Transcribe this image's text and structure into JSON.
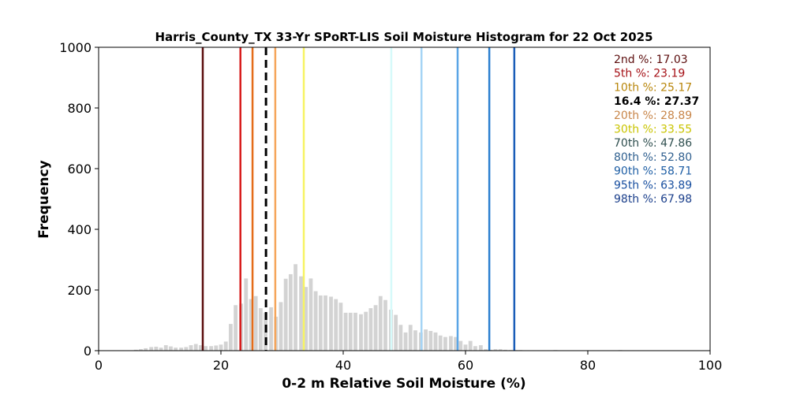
{
  "chart_data": {
    "type": "bar",
    "title": "Harris_County_TX 33-Yr SPoRT-LIS Soil Moisture Histogram for 22 Oct 2025",
    "xlabel": "0-2 m Relative Soil Moisture (%)",
    "ylabel": "Frequency",
    "xlim": [
      0,
      100
    ],
    "ylim": [
      0,
      1000
    ],
    "xticks": [
      "0",
      "20",
      "40",
      "60",
      "80",
      "100"
    ],
    "yticks": [
      "0",
      "200",
      "400",
      "600",
      "800",
      "1000"
    ],
    "bar_color": "#d3d3d3",
    "bins": {
      "x": [
        5.3,
        6.1,
        6.9,
        7.7,
        8.6,
        9.4,
        10.2,
        11.0,
        11.8,
        12.6,
        13.5,
        14.3,
        15.1,
        15.9,
        16.7,
        17.5,
        18.4,
        19.2,
        20.0,
        20.8,
        21.6,
        22.4,
        23.3,
        24.1,
        24.9,
        25.7,
        26.5,
        27.3,
        28.2,
        29.0,
        29.8,
        30.6,
        31.4,
        32.2,
        33.1,
        33.9,
        34.7,
        35.5,
        36.3,
        37.1,
        38.0,
        38.8,
        39.6,
        40.4,
        41.2,
        42.0,
        42.9,
        43.7,
        44.5,
        45.3,
        46.1,
        46.9,
        47.8,
        48.6,
        49.4,
        50.2,
        51.0,
        51.8,
        52.7,
        53.5,
        54.3,
        55.1,
        55.9,
        56.7,
        57.6,
        58.4,
        59.2,
        60.0,
        60.8,
        61.6,
        62.5,
        63.3,
        64.1,
        64.9,
        65.7,
        66.5,
        67.4,
        68.2,
        69.0,
        69.8,
        70.6,
        71.4,
        72.3,
        73.1,
        73.9,
        74.7,
        75.5,
        76.3,
        77.2,
        78.0,
        78.8,
        79.6,
        80.4,
        81.2,
        82.1,
        82.9,
        83.7,
        84.5,
        85.3
      ],
      "values": [
        1,
        3,
        5,
        8,
        12,
        13,
        10,
        18,
        14,
        10,
        10,
        12,
        18,
        22,
        18,
        15,
        15,
        17,
        20,
        30,
        88,
        150,
        155,
        238,
        170,
        180,
        140,
        125,
        143,
        112,
        160,
        237,
        252,
        285,
        245,
        210,
        238,
        196,
        182,
        182,
        178,
        170,
        158,
        125,
        125,
        125,
        120,
        128,
        140,
        150,
        180,
        167,
        135,
        118,
        85,
        60,
        85,
        67,
        60,
        70,
        65,
        60,
        50,
        45,
        48,
        45,
        32,
        20,
        32,
        15,
        18,
        5,
        3,
        5,
        5,
        3,
        2,
        2,
        2,
        1,
        1,
        1,
        1,
        1,
        1,
        2,
        1,
        1,
        1,
        1,
        1,
        1,
        1,
        1,
        1,
        1,
        1,
        1,
        2
      ]
    },
    "percentile_lines": [
      {
        "label": "2nd %: 17.03",
        "value": 17.03,
        "color": "#5c0e0e",
        "dashed": false
      },
      {
        "label": "5th %: 23.19",
        "value": 23.19,
        "color": "#d81b1b",
        "dashed": false
      },
      {
        "label": "10th %: 25.17",
        "value": 25.17,
        "color": "#e46c1a",
        "dashed": false
      },
      {
        "label": "16.4 %: 27.37",
        "value": 27.37,
        "color": "#000000",
        "dashed": true
      },
      {
        "label": "20th %: 28.89",
        "value": 28.89,
        "color": "#f5a55a",
        "dashed": false
      },
      {
        "label": "30th %: 33.55",
        "value": 33.55,
        "color": "#f7f363",
        "dashed": false
      },
      {
        "label": "70th %: 47.86",
        "value": 47.86,
        "color": "#d6fafa",
        "dashed": false
      },
      {
        "label": "80th %: 52.80",
        "value": 52.8,
        "color": "#a5d4f5",
        "dashed": false
      },
      {
        "label": "90th %: 58.71",
        "value": 58.71,
        "color": "#5aa5e6",
        "dashed": false
      },
      {
        "label": "95th %: 63.89",
        "value": 63.89,
        "color": "#2b7fd0",
        "dashed": false
      },
      {
        "label": "98th %: 67.98",
        "value": 67.98,
        "color": "#1a5db8",
        "dashed": false
      }
    ],
    "legend_text_colors": [
      "#5c0e0e",
      "#a50f15",
      "#b8860b",
      "#000000",
      "#c8864a",
      "#c9c400",
      "#2f4f4f",
      "#2f5f8f",
      "#1f5fa5",
      "#174e9f",
      "#1b3f8b"
    ],
    "legend_placement": "top-right",
    "grid": false
  }
}
